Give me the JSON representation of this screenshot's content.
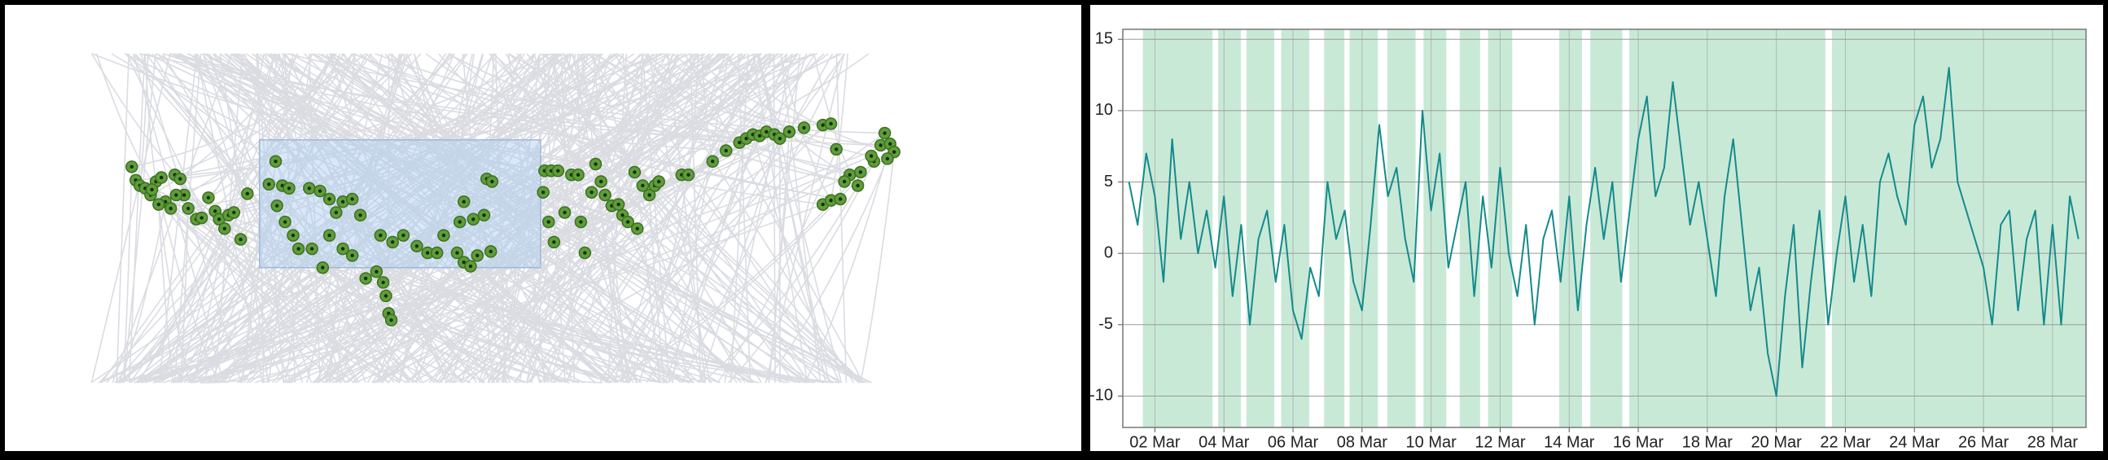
{
  "chart_data": [
    {
      "type": "scatter",
      "xlim": [
        0,
        806
      ],
      "ylim": [
        339,
        0
      ],
      "color": "#5e9e3a",
      "selection": {
        "x": [
          193,
          402
        ],
        "y": [
          104,
          199
        ]
      },
      "x": [
        98,
        101,
        104,
        108,
        112,
        116,
        120,
        123,
        127,
        130,
        134,
        137,
        140,
        146,
        150,
        155,
        160,
        163,
        167,
        170,
        174,
        179,
        184,
        113,
        118,
        131,
        205,
        200,
        210,
        215,
        206,
        212,
        218,
        222,
        230,
        238,
        245,
        250,
        255,
        262,
        268,
        232,
        240,
        245,
        255,
        262,
        272,
        280,
        285,
        287,
        289,
        291,
        283,
        292,
        300,
        310,
        318,
        325,
        330,
        340,
        345,
        350,
        355,
        345,
        352,
        360,
        362,
        366,
        342,
        365,
        405,
        410,
        415,
        404,
        408,
        412,
        420,
        425,
        430,
        432,
        435,
        440,
        443,
        447,
        450,
        455,
        460,
        463,
        467,
        472,
        478,
        483,
        487,
        474,
        490,
        507,
        512,
        530,
        540,
        550,
        555,
        560,
        565,
        570,
        576,
        580,
        587,
        598,
        612,
        618,
        622,
        632,
        638,
        628,
        612,
        618,
        625,
        640,
        650,
        655,
        658,
        662,
        665,
        660,
        648
      ],
      "y": [
        124,
        134,
        138,
        140,
        145,
        135,
        132,
        150,
        155,
        130,
        133,
        145,
        155,
        163,
        162,
        147,
        157,
        163,
        170,
        160,
        158,
        178,
        144,
        141,
        152,
        145,
        120,
        137,
        138,
        140,
        153,
        165,
        175,
        185,
        140,
        142,
        148,
        158,
        150,
        148,
        160,
        185,
        199,
        175,
        185,
        190,
        207,
        202,
        210,
        220,
        233,
        238,
        175,
        180,
        175,
        183,
        188,
        188,
        175,
        188,
        195,
        198,
        190,
        150,
        163,
        160,
        133,
        135,
        165,
        187,
        127,
        127,
        127,
        143,
        165,
        180,
        158,
        130,
        130,
        165,
        188,
        143,
        122,
        135,
        145,
        153,
        152,
        160,
        165,
        128,
        138,
        145,
        138,
        170,
        135,
        130,
        130,
        120,
        112,
        106,
        103,
        100,
        101,
        98,
        100,
        103,
        98,
        95,
        93,
        92,
        111,
        130,
        138,
        135,
        152,
        149,
        148,
        128,
        120,
        108,
        99,
        107,
        113,
        118,
        116
      ]
    },
    {
      "type": "line",
      "xlim": [
        1.07,
        28.97
      ],
      "ylim": [
        -12.2,
        15.7
      ],
      "yticks": [
        -10,
        -5,
        0,
        5,
        10,
        15
      ],
      "xticks": [
        {
          "value": 2,
          "label": "02 Mar"
        },
        {
          "value": 4,
          "label": "04 Mar"
        },
        {
          "value": 6,
          "label": "06 Mar"
        },
        {
          "value": 8,
          "label": "08 Mar"
        },
        {
          "value": 10,
          "label": "10 Mar"
        },
        {
          "value": 12,
          "label": "12 Mar"
        },
        {
          "value": 14,
          "label": "14 Mar"
        },
        {
          "value": 16,
          "label": "16 Mar"
        },
        {
          "value": 18,
          "label": "18 Mar"
        },
        {
          "value": 20,
          "label": "20 Mar"
        },
        {
          "value": 22,
          "label": "22 Mar"
        },
        {
          "value": 24,
          "label": "24 Mar"
        },
        {
          "value": 26,
          "label": "26 Mar"
        },
        {
          "value": 28,
          "label": "28 Mar"
        }
      ],
      "grid": true,
      "band_color": "#c9e9d7",
      "bands": [
        [
          1.65,
          3.67
        ],
        [
          3.83,
          4.49
        ],
        [
          4.65,
          5.46
        ],
        [
          5.66,
          6.47
        ],
        [
          6.9,
          7.49
        ],
        [
          7.64,
          8.46
        ],
        [
          8.73,
          9.55
        ],
        [
          9.78,
          10.44
        ],
        [
          10.83,
          11.42
        ],
        [
          11.65,
          12.35
        ],
        [
          13.71,
          14.37
        ],
        [
          14.61,
          15.54
        ],
        [
          15.74,
          21.42
        ],
        [
          21.61,
          28.97
        ]
      ],
      "x": [
        1.25,
        1.5,
        1.75,
        2,
        2.25,
        2.5,
        2.75,
        3,
        3.25,
        3.5,
        3.75,
        4,
        4.25,
        4.5,
        4.75,
        5,
        5.25,
        5.5,
        5.75,
        6,
        6.25,
        6.5,
        6.75,
        7,
        7.25,
        7.5,
        7.75,
        8,
        8.25,
        8.5,
        8.75,
        9,
        9.25,
        9.5,
        9.75,
        10,
        10.25,
        10.5,
        10.75,
        11,
        11.25,
        11.5,
        11.75,
        12,
        12.25,
        12.5,
        12.75,
        13,
        13.25,
        13.5,
        13.75,
        14,
        14.25,
        14.5,
        14.75,
        15,
        15.25,
        15.5,
        15.75,
        16,
        16.25,
        16.5,
        16.75,
        17,
        17.25,
        17.5,
        17.75,
        18,
        18.25,
        18.5,
        18.75,
        19,
        19.25,
        19.5,
        19.75,
        20,
        20.25,
        20.5,
        20.75,
        21,
        21.25,
        21.5,
        21.75,
        22,
        22.25,
        22.5,
        22.75,
        23,
        23.25,
        23.5,
        23.75,
        24,
        24.25,
        24.5,
        24.75,
        25,
        25.25,
        25.5,
        25.75,
        26,
        26.25,
        26.5,
        26.75,
        27,
        27.25,
        27.5,
        27.75,
        28,
        28.25,
        28.5,
        28.75
      ],
      "series": [
        {
          "color": "#148a8c",
          "values": [
            5,
            2,
            7,
            4,
            -2,
            8,
            1,
            5,
            0,
            3,
            -1,
            4,
            -3,
            2,
            -5,
            1,
            3,
            -2,
            2,
            -4,
            -6,
            -1,
            -3,
            5,
            1,
            3,
            -2,
            -4,
            2,
            9,
            4,
            6,
            1,
            -2,
            10,
            3,
            7,
            -1,
            2,
            5,
            -3,
            4,
            -1,
            6,
            0,
            -3,
            2,
            -5,
            1,
            3,
            -2,
            4,
            -4,
            2,
            6,
            1,
            5,
            -2,
            3,
            8,
            11,
            4,
            6,
            12,
            7,
            2,
            5,
            1,
            -3,
            4,
            8,
            2,
            -4,
            -1,
            -7,
            -10,
            -3,
            2,
            -8,
            -2,
            3,
            -5,
            0,
            4,
            -2,
            2,
            -3,
            5,
            7,
            4,
            2,
            9,
            11,
            6,
            8,
            13,
            5,
            3,
            1,
            -1,
            -5,
            2,
            3,
            -4,
            1,
            3,
            -5,
            2,
            -5,
            4,
            1
          ]
        }
      ]
    }
  ]
}
